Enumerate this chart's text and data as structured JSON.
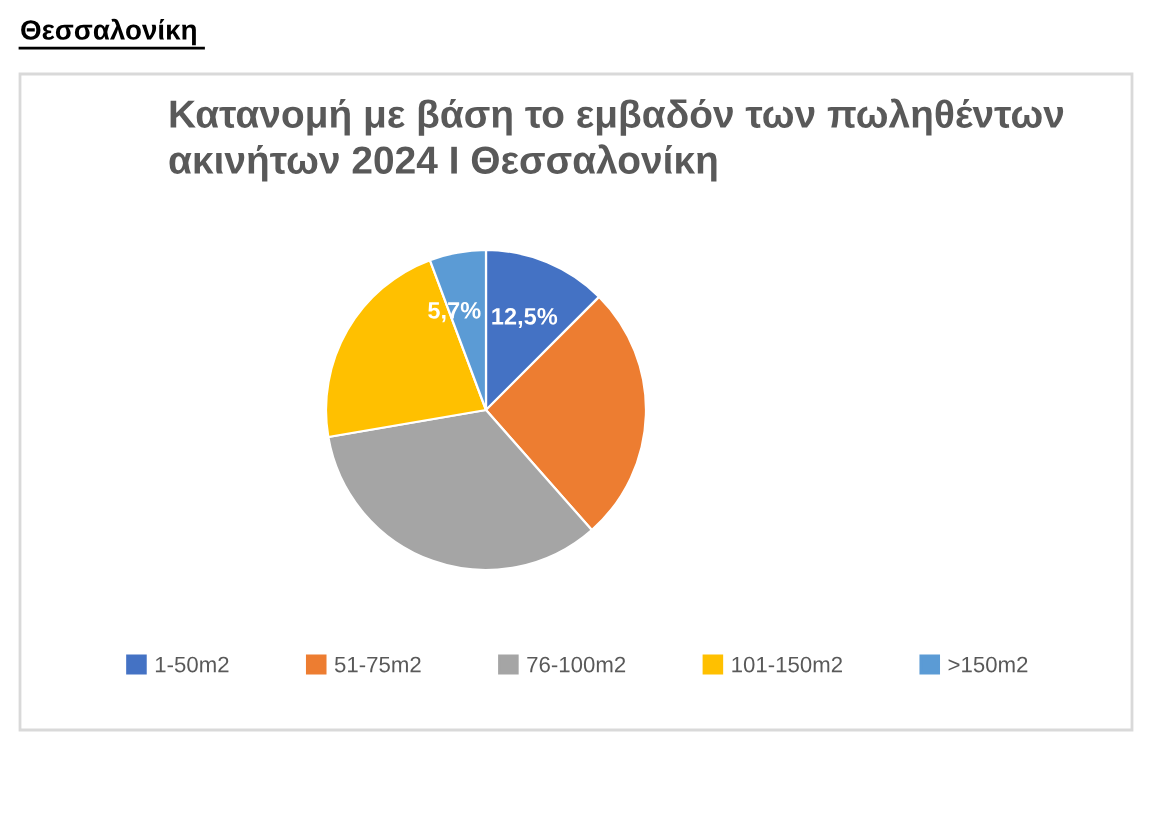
{
  "chart_data": {
    "type": "pie",
    "title": "Κατανομή με βάση το εμβαδόν των πωληθέντων\nακινήτων 2024 Ι Θεσσαλονίκη",
    "categories": [
      "1-50m2",
      "51-75m2",
      "76-100m2",
      "101-150m2",
      ">150m2"
    ],
    "values": [
      12.5,
      26,
      33.8,
      22,
      5.7
    ],
    "colors": [
      "#4472c4",
      "#ed7d31",
      "#a5a5a5",
      "#ffc000",
      "#5b9bd5"
    ],
    "value_labels": [
      "12,5%",
      null,
      null,
      null,
      "5,7%"
    ],
    "legend": "bottom",
    "annotations": [
      "Θεσσαλονίκη"
    ]
  }
}
